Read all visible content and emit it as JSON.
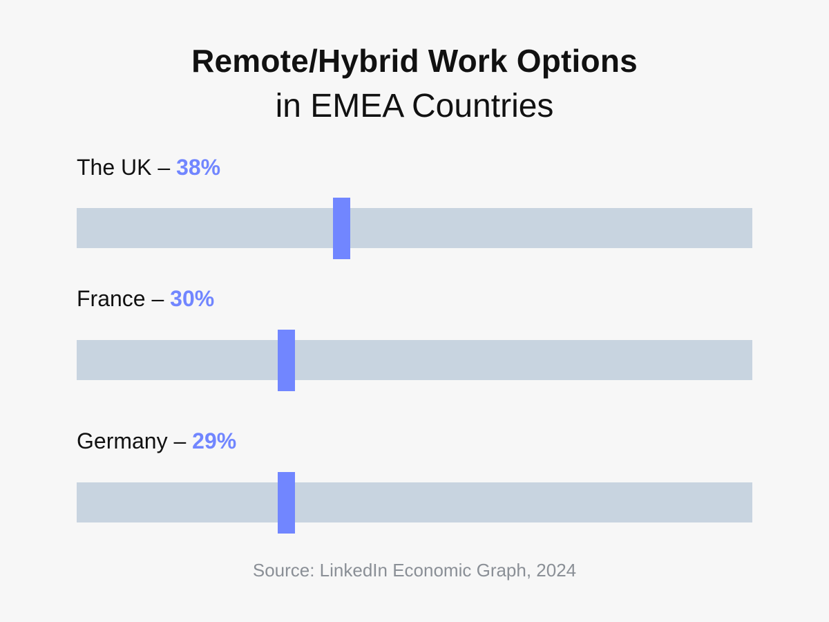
{
  "title": "Remote/Hybrid Work Options",
  "subtitle": "in EMEA Countries",
  "source": "Source:  LinkedIn Economic Graph, 2024",
  "colors": {
    "accent": "#7186ff",
    "track": "#c8d4e0",
    "background": "#f7f7f7",
    "text": "#111111",
    "source_text": "#8a8f96"
  },
  "chart_data": {
    "type": "bar",
    "title": "Remote/Hybrid Work Options",
    "subtitle": "in EMEA Countries",
    "categories": [
      "The UK",
      "France",
      "Germany"
    ],
    "values": [
      38,
      30,
      29
    ],
    "value_labels": [
      "38%",
      "30%",
      "29%"
    ],
    "unit": "%",
    "ylim": [
      0,
      100
    ],
    "grid": false,
    "legend": "none"
  }
}
